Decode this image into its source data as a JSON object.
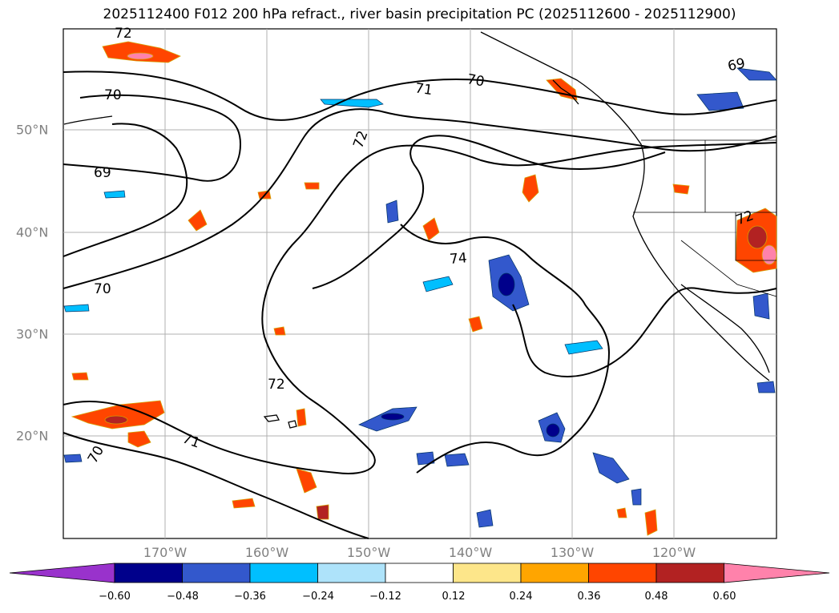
{
  "title": "2025112400 F012 200 hPa refract., river basin precipitation PC (2025112600 - 2025112900)",
  "lat_labels": [
    "50°N",
    "40°N",
    "30°N",
    "20°N"
  ],
  "lon_labels": [
    "170°W",
    "160°W",
    "150°W",
    "140°W",
    "130°W",
    "120°W"
  ],
  "contour_labels": [
    "72",
    "70",
    "71",
    "70",
    "69",
    "72",
    "69",
    "70",
    "74",
    "72",
    "70",
    "71",
    "72"
  ],
  "colorbar": {
    "ticks": [
      "−0.60",
      "−0.48",
      "−0.36",
      "−0.24",
      "−0.12",
      "0.12",
      "0.24",
      "0.36",
      "0.48",
      "0.60"
    ],
    "colors": [
      "#9932cc",
      "#00008b",
      "#3358cc",
      "#00bfff",
      "#aee3fa",
      "#ffffff",
      "#fde68a",
      "#ffa500",
      "#ff4500",
      "#b22222",
      "#ff82ab"
    ]
  }
}
